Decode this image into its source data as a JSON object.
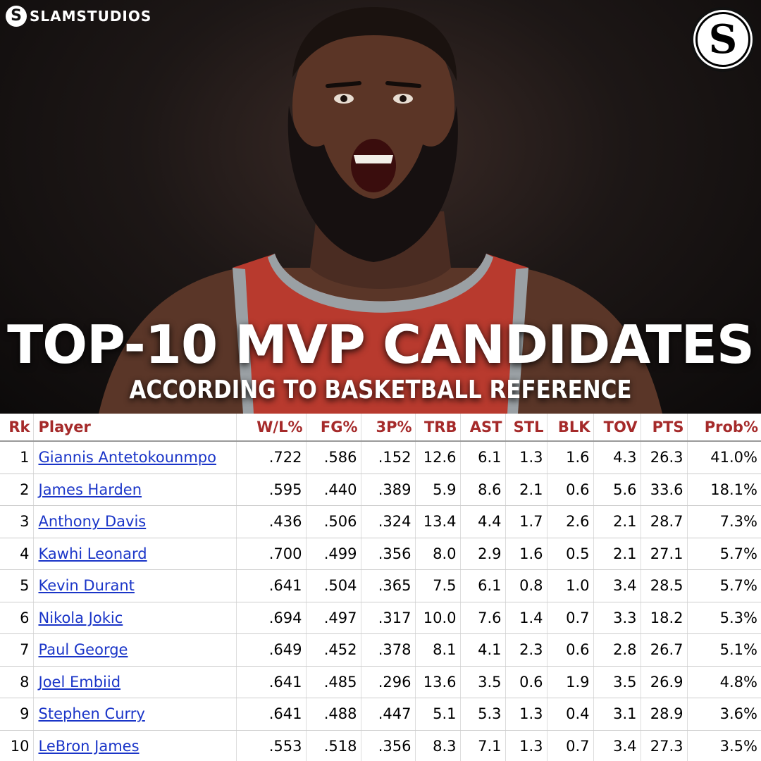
{
  "brand": {
    "name": "SLAMSTUDIOS",
    "mark": "S",
    "corner_mark": "S"
  },
  "headline": {
    "title": "TOP-10 MVP CANDIDATES",
    "subtitle": "ACCORDING TO BASKETBALL REFERENCE"
  },
  "colors": {
    "header_text": "#a52a2a",
    "link": "#1a35c8",
    "jersey": "#b83a2e"
  },
  "table": {
    "headers": [
      "Rk",
      "Player",
      "W/L%",
      "FG%",
      "3P%",
      "TRB",
      "AST",
      "STL",
      "BLK",
      "TOV",
      "PTS",
      "Prob%"
    ],
    "rows": [
      [
        "1",
        "Giannis Antetokounmpo",
        ".722",
        ".586",
        ".152",
        "12.6",
        "6.1",
        "1.3",
        "1.6",
        "4.3",
        "26.3",
        "41.0%"
      ],
      [
        "2",
        "James Harden",
        ".595",
        ".440",
        ".389",
        "5.9",
        "8.6",
        "2.1",
        "0.6",
        "5.6",
        "33.6",
        "18.1%"
      ],
      [
        "3",
        "Anthony Davis",
        ".436",
        ".506",
        ".324",
        "13.4",
        "4.4",
        "1.7",
        "2.6",
        "2.1",
        "28.7",
        "7.3%"
      ],
      [
        "4",
        "Kawhi Leonard",
        ".700",
        ".499",
        ".356",
        "8.0",
        "2.9",
        "1.6",
        "0.5",
        "2.1",
        "27.1",
        "5.7%"
      ],
      [
        "5",
        "Kevin Durant",
        ".641",
        ".504",
        ".365",
        "7.5",
        "6.1",
        "0.8",
        "1.0",
        "3.4",
        "28.5",
        "5.7%"
      ],
      [
        "6",
        "Nikola Jokic",
        ".694",
        ".497",
        ".317",
        "10.0",
        "7.6",
        "1.4",
        "0.7",
        "3.3",
        "18.2",
        "5.3%"
      ],
      [
        "7",
        "Paul George",
        ".649",
        ".452",
        ".378",
        "8.1",
        "4.1",
        "2.3",
        "0.6",
        "2.8",
        "26.7",
        "5.1%"
      ],
      [
        "8",
        "Joel Embiid",
        ".641",
        ".485",
        ".296",
        "13.6",
        "3.5",
        "0.6",
        "1.9",
        "3.5",
        "26.9",
        "4.8%"
      ],
      [
        "9",
        "Stephen Curry",
        ".641",
        ".488",
        ".447",
        "5.1",
        "5.3",
        "1.3",
        "0.4",
        "3.1",
        "28.9",
        "3.6%"
      ],
      [
        "10",
        "LeBron James",
        ".553",
        ".518",
        ".356",
        "8.3",
        "7.1",
        "1.3",
        "0.7",
        "3.4",
        "27.3",
        "3.5%"
      ]
    ]
  }
}
